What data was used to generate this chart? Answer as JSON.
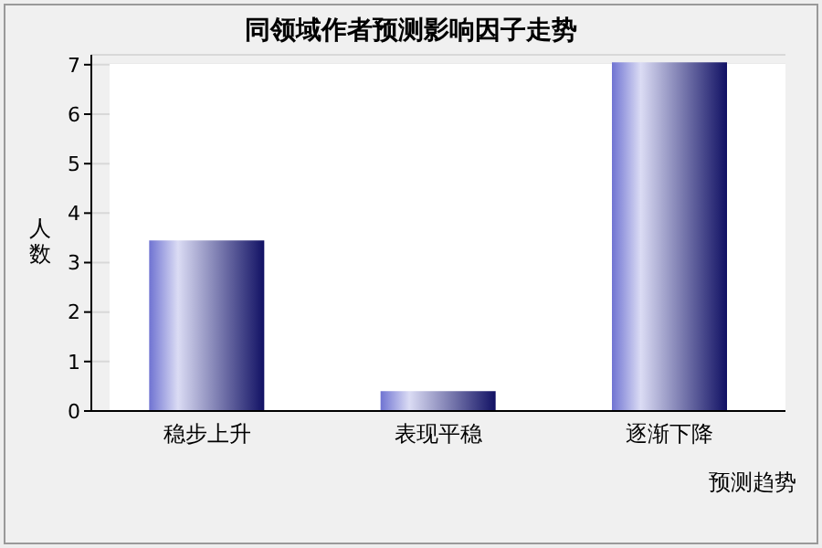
{
  "chart_data": {
    "type": "bar",
    "title": "同领域作者预测影响因子走势",
    "xlabel": "预测趋势",
    "ylabel": "人数",
    "categories": [
      "稳步上升",
      "表现平稳",
      "逐渐下降"
    ],
    "values": [
      3.45,
      0.4,
      7.05
    ],
    "color": "#6f73d2",
    "ylim": [
      0,
      7.2
    ],
    "yticks": [
      0,
      1,
      2,
      3,
      4,
      5,
      6,
      7
    ],
    "grid": "y"
  }
}
